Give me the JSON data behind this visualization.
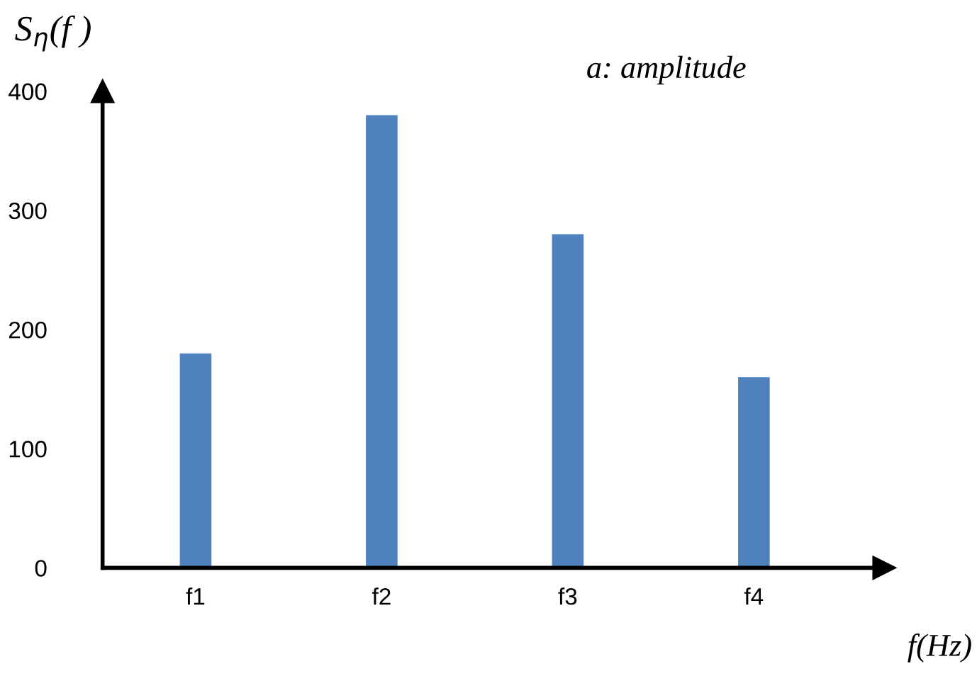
{
  "chart_data": {
    "type": "bar",
    "ylabel": "S$_{η}$(f )",
    "xlabel": "f(Hz)",
    "annotations": [
      "a: amplitude"
    ],
    "categories": [
      "f1",
      "f2",
      "f3",
      "f4"
    ],
    "values": [
      180,
      380,
      280,
      160
    ],
    "color": "#4f81bd",
    "ylim": [
      0,
      400
    ],
    "yticks": [
      0,
      100,
      200,
      300,
      400
    ],
    "grid": false,
    "legend": false
  }
}
